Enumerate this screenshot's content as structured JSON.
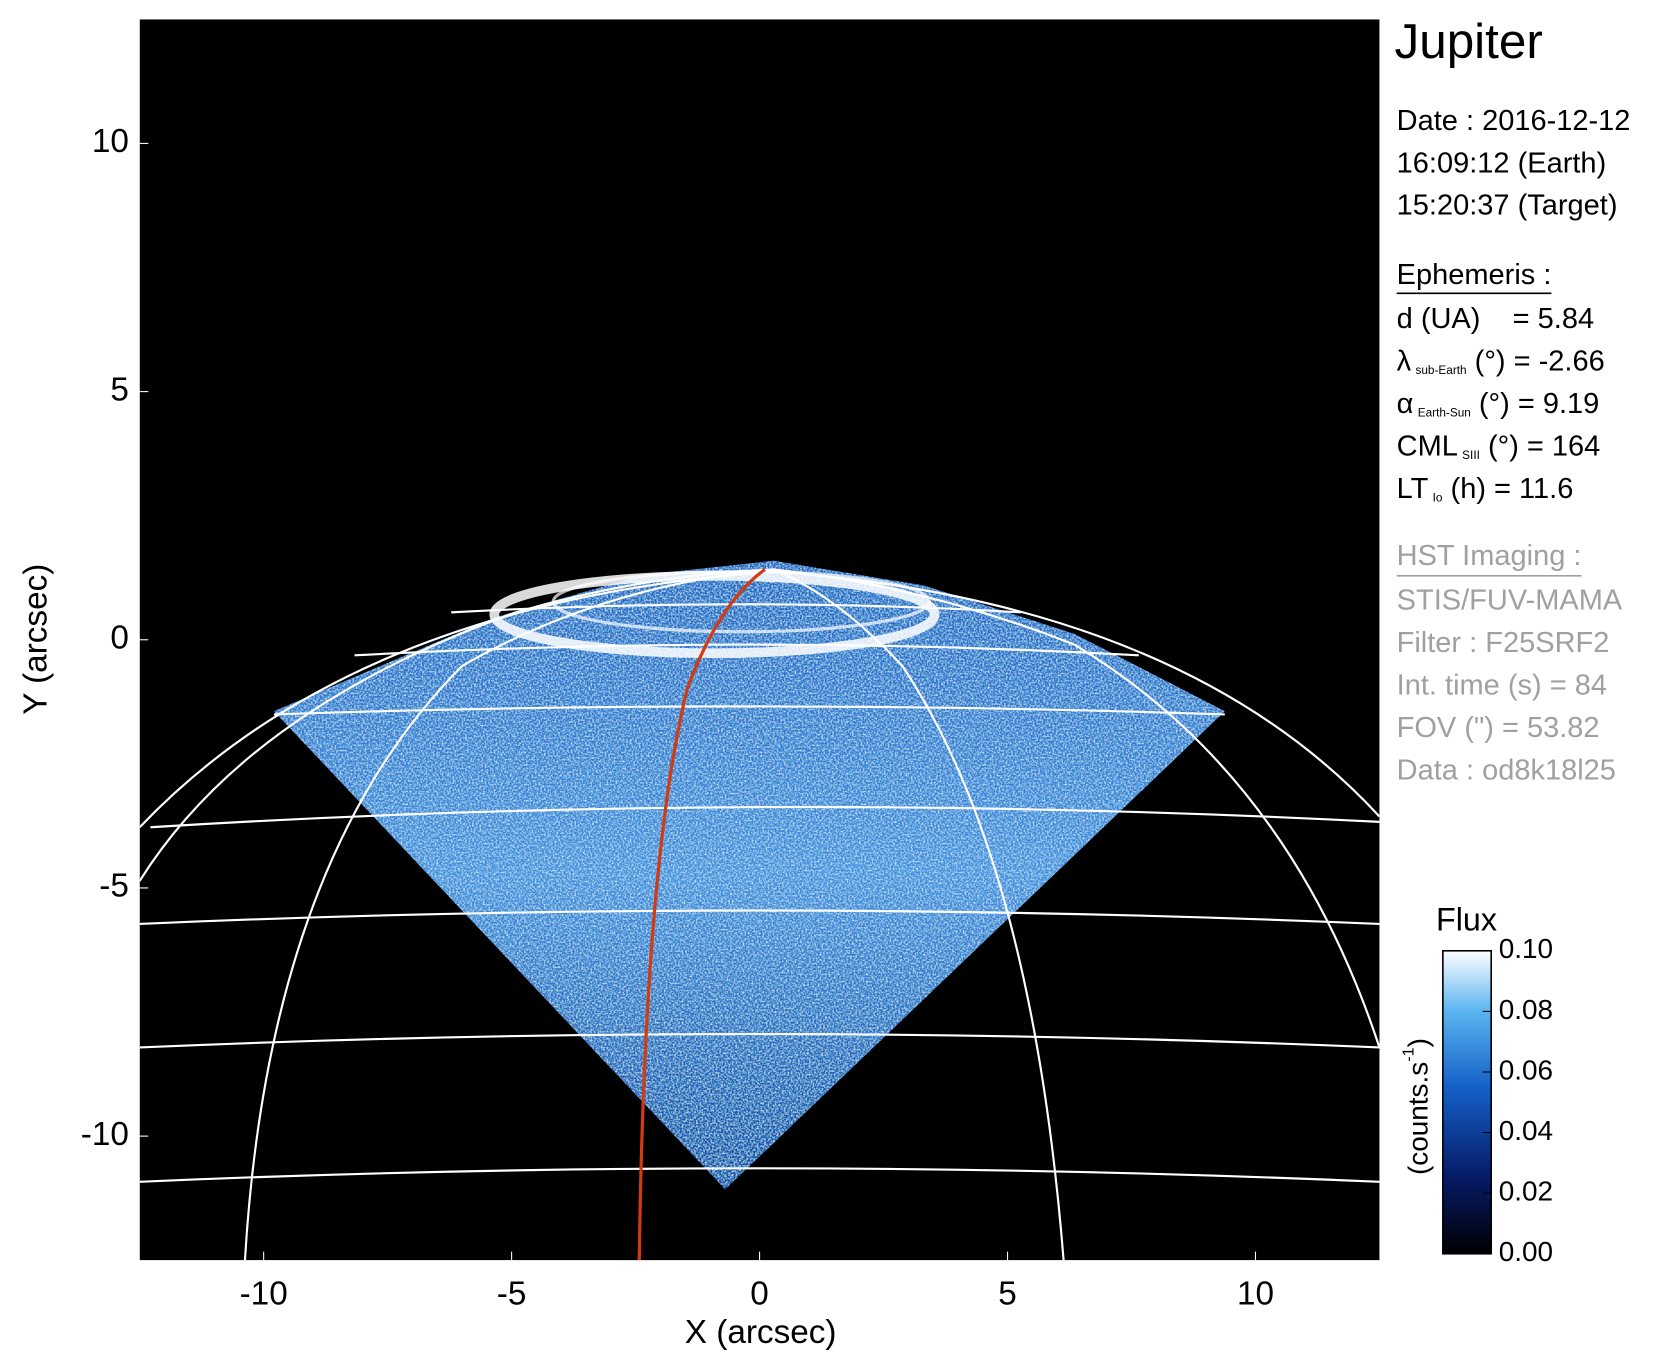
{
  "chart_data": {
    "type": "image",
    "title": "Jupiter",
    "x_label": "X (arcsec)",
    "y_label": "Y (arcsec)",
    "xlim": [
      -12.5,
      12.5
    ],
    "ylim": [
      -12.5,
      12.5
    ],
    "xticks": [
      -10,
      -5,
      0,
      5,
      10
    ],
    "yticks": [
      -10,
      -5,
      0,
      5,
      10
    ],
    "info": [
      "Date : 2016-12-12",
      "16:09:12 (Earth)",
      "15:20:37 (Target)"
    ],
    "ephemeris_title": "Ephemeris :",
    "ephemeris": [
      {
        "main": "d (UA)    = 5.84"
      },
      {
        "main": "λ",
        "sub": "sub-Earth",
        "tail": " (°) = -2.66"
      },
      {
        "main": "α",
        "sub": "Earth-Sun",
        "tail": " (°) = 9.19"
      },
      {
        "main": "CML",
        "sub": "SIII",
        "tail": " (°) = 164"
      },
      {
        "main": "LT",
        "sub": "Io",
        "tail": " (h) = 11.6"
      }
    ],
    "imaging_title": "HST Imaging :",
    "imaging": [
      "STIS/FUV-MAMA",
      "Filter : F25SRF2",
      "Int. time (s) = 84",
      "FOV (\") = 53.82",
      "Data : od8k18l25"
    ],
    "colorbar": {
      "title": "Flux",
      "label": {
        "base": "(counts.s",
        "sup": "-1",
        "end": ")"
      },
      "lim": [
        0,
        0.1
      ],
      "ticks": [
        {
          "value": 0,
          "label": "0.00"
        },
        0.02,
        0.04,
        0.06,
        0.08,
        {
          "value": 0.1,
          "label": "0.10"
        }
      ]
    }
  }
}
